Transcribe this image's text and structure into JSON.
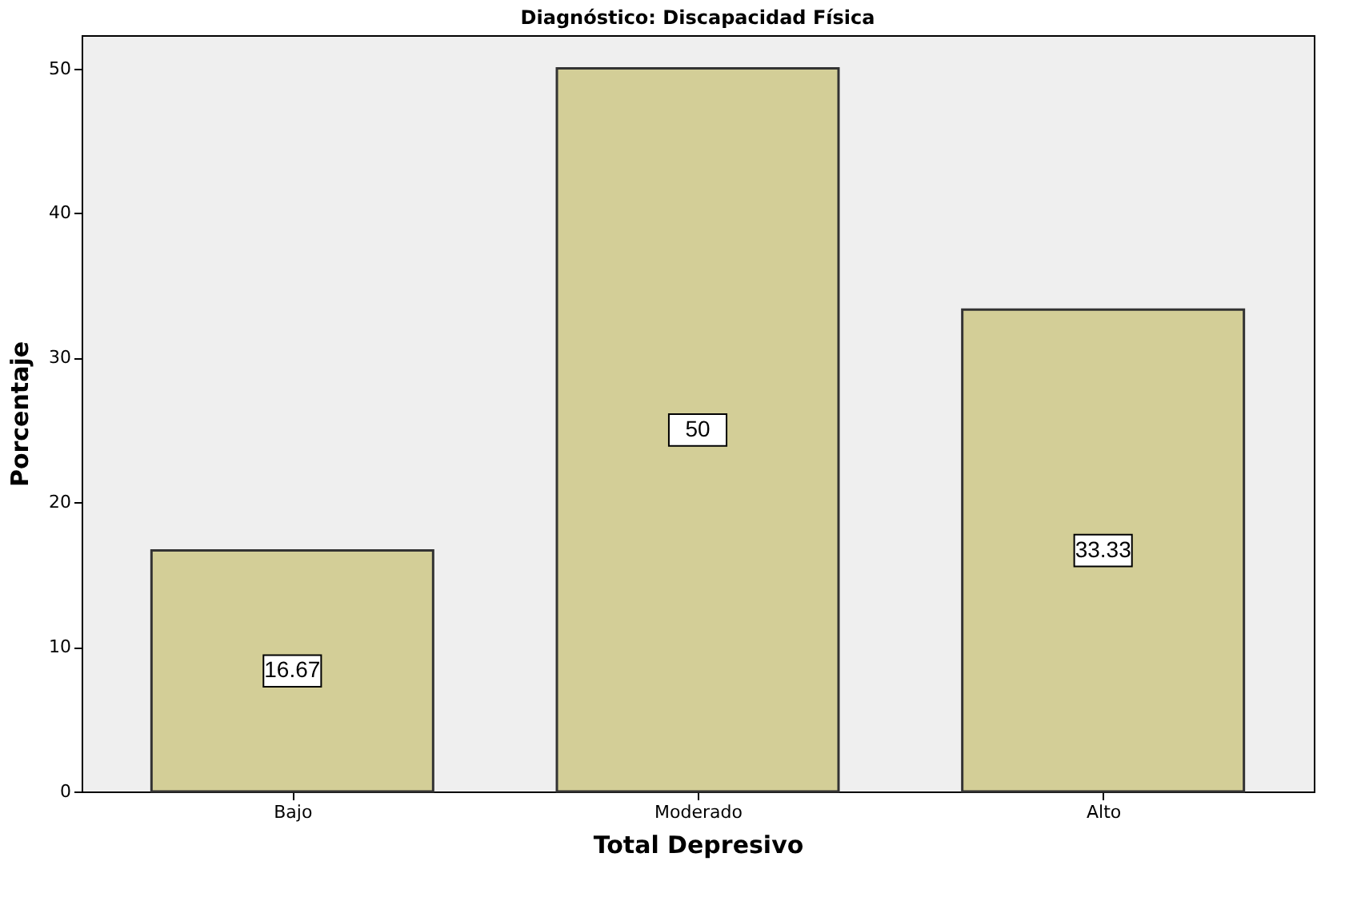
{
  "chart_data": {
    "type": "bar",
    "title": "Diagnóstico: Discapacidad Física",
    "xlabel": "Total Depresivo",
    "ylabel": "Porcentaje",
    "categories": [
      "Bajo",
      "Moderado",
      "Alto"
    ],
    "values": [
      16.67,
      50,
      33.33
    ],
    "color": "#d3ce97",
    "ylim": [
      0,
      52.3
    ],
    "yticks": [
      0,
      10,
      20,
      30,
      40,
      50
    ],
    "grid": false,
    "data_labels": true
  }
}
